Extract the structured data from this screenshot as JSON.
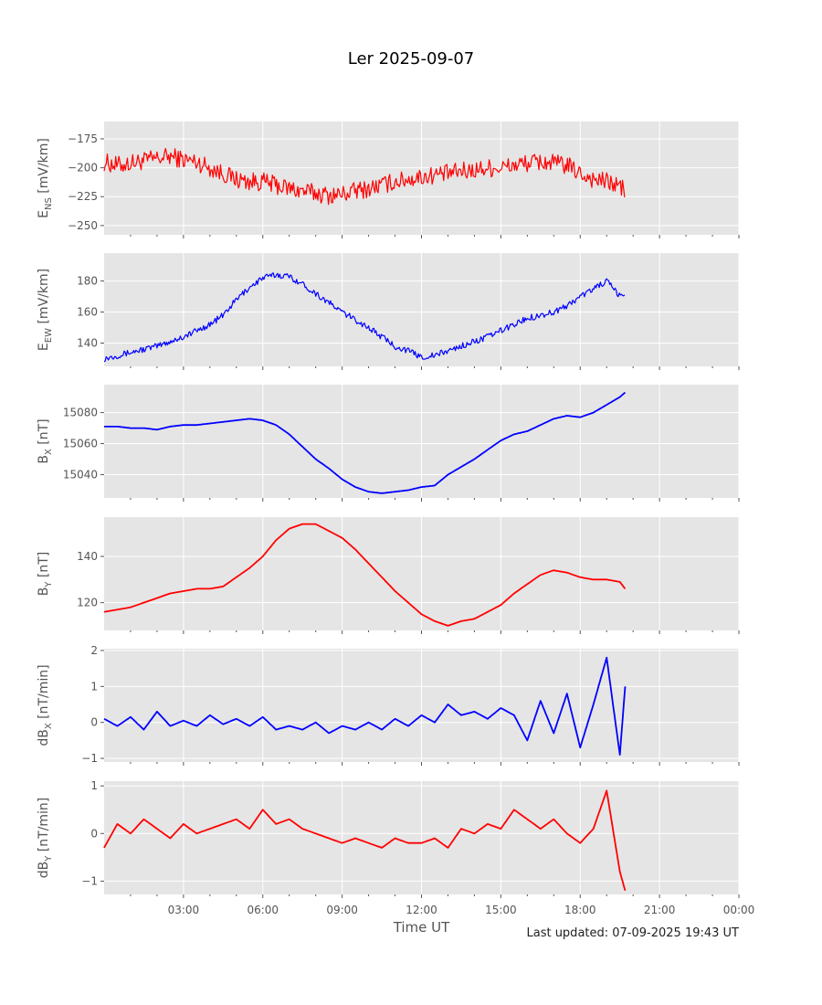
{
  "title": "Ler 2025-09-07",
  "footer": "Last updated: 07-09-2025 19:43 UT",
  "chart_data": {
    "type": "line",
    "xlabel": "Time UT",
    "x_unit": "hours UT",
    "xlim": [
      0,
      24
    ],
    "x_ticks": [
      3,
      6,
      9,
      12,
      15,
      18,
      21,
      24
    ],
    "x_tick_labels": [
      "03:00",
      "06:00",
      "09:00",
      "12:00",
      "15:00",
      "18:00",
      "21:00",
      "00:00"
    ],
    "grid": true,
    "panels": [
      {
        "id": "ens",
        "ylabel_main": "E",
        "ylabel_sub": "NS",
        "ylabel_unit": " [mV/km]",
        "ylim": [
          -258,
          -160
        ],
        "yticks": [
          -175,
          -200,
          -225,
          -250
        ],
        "color": "#ff0000",
        "noise": 8,
        "x": [
          0,
          0.5,
          1,
          1.5,
          2,
          2.5,
          3,
          3.5,
          4,
          4.5,
          5,
          5.5,
          6,
          6.5,
          7,
          7.5,
          8,
          8.5,
          9,
          9.5,
          10,
          10.5,
          11,
          11.5,
          12,
          12.5,
          13,
          13.5,
          14,
          14.5,
          15,
          15.5,
          16,
          16.5,
          17,
          17.5,
          18,
          18.5,
          19,
          19.5,
          19.7
        ],
        "y": [
          -195,
          -198,
          -196,
          -194,
          -192,
          -190,
          -193,
          -195,
          -200,
          -205,
          -210,
          -212,
          -212,
          -215,
          -218,
          -220,
          -222,
          -224,
          -223,
          -220,
          -218,
          -215,
          -212,
          -210,
          -208,
          -206,
          -205,
          -203,
          -202,
          -200,
          -200,
          -198,
          -196,
          -195,
          -196,
          -198,
          -205,
          -210,
          -212,
          -216,
          -220
        ]
      },
      {
        "id": "eew",
        "ylabel_main": "E",
        "ylabel_sub": "EW",
        "ylabel_unit": " [mV/km]",
        "ylim": [
          125,
          198
        ],
        "yticks": [
          140,
          160,
          180
        ],
        "color": "#0000ff",
        "noise": 2,
        "x": [
          0,
          0.5,
          1,
          1.5,
          2,
          2.5,
          3,
          3.5,
          4,
          4.5,
          5,
          5.5,
          6,
          6.5,
          7,
          7.5,
          8,
          8.5,
          9,
          9.5,
          10,
          10.5,
          11,
          11.5,
          12,
          12.5,
          13,
          13.5,
          14,
          14.5,
          15,
          15.5,
          16,
          16.5,
          17,
          17.5,
          18,
          18.5,
          19,
          19.5,
          19.7
        ],
        "y": [
          130,
          132,
          134,
          136,
          138,
          141,
          144,
          148,
          152,
          158,
          168,
          176,
          182,
          184,
          183,
          178,
          172,
          166,
          160,
          155,
          150,
          144,
          138,
          135,
          131,
          132,
          135,
          138,
          141,
          144,
          148,
          152,
          156,
          158,
          160,
          164,
          170,
          175,
          180,
          170,
          172
        ]
      },
      {
        "id": "bx",
        "ylabel_main": "B",
        "ylabel_sub": "X",
        "ylabel_unit": " [nT]",
        "ylim": [
          15025,
          15098
        ],
        "yticks": [
          15040,
          15060,
          15080
        ],
        "color": "#0000ff",
        "noise": 0,
        "x": [
          0,
          0.5,
          1,
          1.5,
          2,
          2.5,
          3,
          3.5,
          4,
          4.5,
          5,
          5.5,
          6,
          6.5,
          7,
          7.5,
          8,
          8.5,
          9,
          9.5,
          10,
          10.5,
          11,
          11.5,
          12,
          12.5,
          13,
          13.5,
          14,
          14.5,
          15,
          15.5,
          16,
          16.5,
          17,
          17.5,
          18,
          18.5,
          19,
          19.5,
          19.7
        ],
        "y": [
          15071,
          15071,
          15070,
          15070,
          15069,
          15071,
          15072,
          15072,
          15073,
          15074,
          15075,
          15076,
          15075,
          15072,
          15066,
          15058,
          15050,
          15044,
          15037,
          15032,
          15029,
          15028,
          15029,
          15030,
          15032,
          15033,
          15040,
          15045,
          15050,
          15056,
          15062,
          15066,
          15068,
          15072,
          15076,
          15078,
          15077,
          15080,
          15085,
          15090,
          15093
        ]
      },
      {
        "id": "by",
        "ylabel_main": "B",
        "ylabel_sub": "Y",
        "ylabel_unit": " [nT]",
        "ylim": [
          108,
          157
        ],
        "yticks": [
          120,
          140
        ],
        "color": "#ff0000",
        "noise": 0,
        "x": [
          0,
          0.5,
          1,
          1.5,
          2,
          2.5,
          3,
          3.5,
          4,
          4.5,
          5,
          5.5,
          6,
          6.5,
          7,
          7.5,
          8,
          8.5,
          9,
          9.5,
          10,
          10.5,
          11,
          11.5,
          12,
          12.5,
          13,
          13.5,
          14,
          14.5,
          15,
          15.5,
          16,
          16.5,
          17,
          17.5,
          18,
          18.5,
          19,
          19.5,
          19.7
        ],
        "y": [
          116,
          117,
          118,
          120,
          122,
          124,
          125,
          126,
          126,
          127,
          131,
          135,
          140,
          147,
          152,
          154,
          154,
          151,
          148,
          143,
          137,
          131,
          125,
          120,
          115,
          112,
          110,
          112,
          113,
          116,
          119,
          124,
          128,
          132,
          134,
          133,
          131,
          130,
          130,
          129,
          126
        ]
      },
      {
        "id": "dbx",
        "ylabel_main": "dB",
        "ylabel_sub": "X",
        "ylabel_unit": " [nT/min]",
        "ylim": [
          -1.1,
          2.05
        ],
        "yticks": [
          -1,
          0,
          1,
          2
        ],
        "color": "#0000ff",
        "noise": 0,
        "x": [
          0,
          0.5,
          1,
          1.5,
          2,
          2.5,
          3,
          3.5,
          4,
          4.5,
          5,
          5.5,
          6,
          6.5,
          7,
          7.5,
          8,
          8.5,
          9,
          9.5,
          10,
          10.5,
          11,
          11.5,
          12,
          12.5,
          13,
          13.5,
          14,
          14.5,
          15,
          15.5,
          16,
          16.5,
          17,
          17.5,
          18,
          18.5,
          19,
          19.5,
          19.7
        ],
        "y": [
          0.1,
          -0.1,
          0.15,
          -0.2,
          0.3,
          -0.1,
          0.05,
          -0.1,
          0.2,
          -0.05,
          0.1,
          -0.1,
          0.15,
          -0.2,
          -0.1,
          -0.2,
          0.0,
          -0.3,
          -0.1,
          -0.2,
          0.0,
          -0.2,
          0.1,
          -0.1,
          0.2,
          0.0,
          0.5,
          0.2,
          0.3,
          0.1,
          0.4,
          0.2,
          -0.5,
          0.6,
          -0.3,
          0.8,
          -0.7,
          0.5,
          1.8,
          -0.9,
          1.0
        ]
      },
      {
        "id": "dby",
        "ylabel_main": "dB",
        "ylabel_sub": "Y",
        "ylabel_unit": " [nT/min]",
        "ylim": [
          -1.28,
          1.1
        ],
        "yticks": [
          -1,
          0,
          1
        ],
        "color": "#ff0000",
        "noise": 0,
        "x": [
          0,
          0.5,
          1,
          1.5,
          2,
          2.5,
          3,
          3.5,
          4,
          4.5,
          5,
          5.5,
          6,
          6.5,
          7,
          7.5,
          8,
          8.5,
          9,
          9.5,
          10,
          10.5,
          11,
          11.5,
          12,
          12.5,
          13,
          13.5,
          14,
          14.5,
          15,
          15.5,
          16,
          16.5,
          17,
          17.5,
          18,
          18.5,
          19,
          19.5,
          19.7
        ],
        "y": [
          -0.3,
          0.2,
          0.0,
          0.3,
          0.1,
          -0.1,
          0.2,
          0.0,
          0.1,
          0.2,
          0.3,
          0.1,
          0.5,
          0.2,
          0.3,
          0.1,
          0.0,
          -0.1,
          -0.2,
          -0.1,
          -0.2,
          -0.3,
          -0.1,
          -0.2,
          -0.2,
          -0.1,
          -0.3,
          0.1,
          0.0,
          0.2,
          0.1,
          0.5,
          0.3,
          0.1,
          0.3,
          0.0,
          -0.2,
          0.1,
          0.9,
          -0.8,
          -1.2
        ]
      }
    ]
  }
}
